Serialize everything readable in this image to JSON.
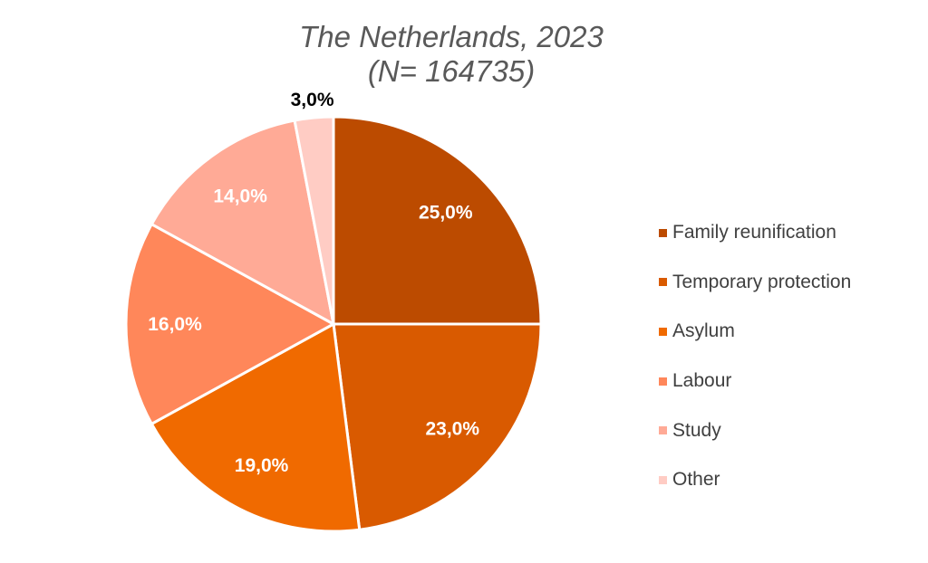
{
  "title": {
    "line1": "The Netherlands, 2023",
    "line2": "(N= 164735)"
  },
  "chart_data": {
    "type": "pie",
    "title": "The Netherlands, 2023 (N= 164735)",
    "start_angle_deg": 0,
    "direction": "clockwise",
    "legend_position": "right",
    "slices": [
      {
        "name": "Family reunification",
        "value": 25.0,
        "label": "25,0%",
        "color": "#BC4B00",
        "label_color": "#ffffff"
      },
      {
        "name": "Temporary protection",
        "value": 23.0,
        "label": "23,0%",
        "color": "#D95A00",
        "label_color": "#ffffff"
      },
      {
        "name": "Asylum",
        "value": 19.0,
        "label": "19,0%",
        "color": "#F06A00",
        "label_color": "#ffffff"
      },
      {
        "name": "Labour",
        "value": 16.0,
        "label": "16,0%",
        "color": "#FF875A",
        "label_color": "#ffffff"
      },
      {
        "name": "Study",
        "value": 14.0,
        "label": "14,0%",
        "color": "#FFAA96",
        "label_color": "#ffffff"
      },
      {
        "name": "Other",
        "value": 3.0,
        "label": "3,0%",
        "color": "#FFCCC4",
        "label_color": "#000000"
      }
    ]
  }
}
